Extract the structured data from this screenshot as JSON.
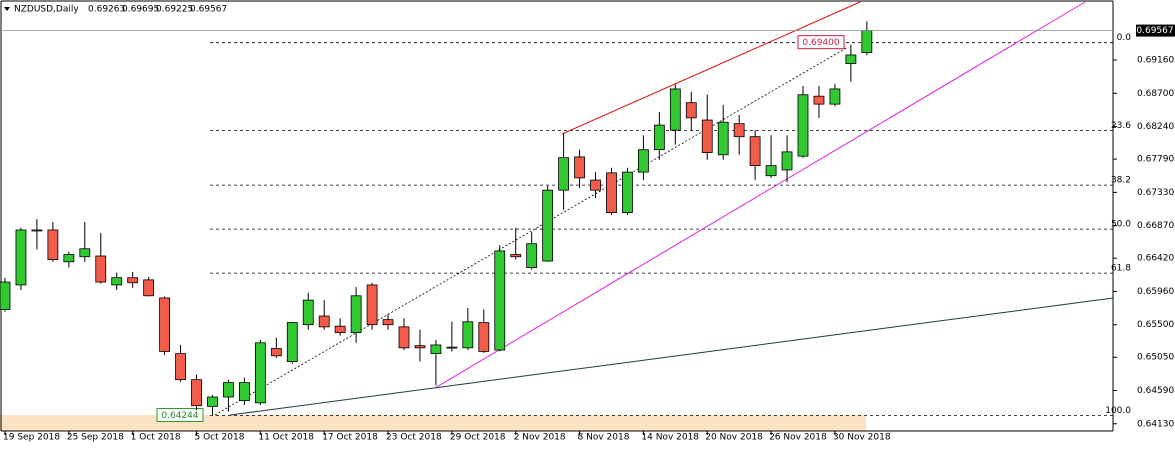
{
  "chart_data": {
    "type": "candlestick",
    "symbol": "NZDUSD,Daily",
    "categories": [
      "19 Sep 2018",
      null,
      null,
      null,
      "25 Sep 2018",
      null,
      null,
      null,
      "1 Oct 2018",
      null,
      null,
      null,
      "5 Oct 2018",
      null,
      null,
      null,
      "11 Oct 2018",
      null,
      null,
      null,
      "17 Oct 2018",
      null,
      null,
      null,
      "23 Oct 2018",
      null,
      null,
      null,
      "29 Oct 2018",
      null,
      null,
      null,
      "2 Nov 2018",
      null,
      null,
      null,
      "8 Nov 2018",
      null,
      null,
      null,
      "14 Nov 2018",
      null,
      null,
      null,
      "20 Nov 2018",
      null,
      null,
      null,
      "26 Nov 2018",
      null,
      null,
      null,
      "30 Nov 2018",
      null,
      null
    ],
    "ohlc": [
      [
        0.6571,
        0.6615,
        0.6568,
        0.6609
      ],
      [
        0.6605,
        0.6684,
        0.6598,
        0.6681
      ],
      [
        0.668,
        0.6696,
        0.6654,
        0.6681
      ],
      [
        0.6681,
        0.6692,
        0.6637,
        0.664
      ],
      [
        0.6637,
        0.6651,
        0.6629,
        0.6647
      ],
      [
        0.6644,
        0.6692,
        0.6637,
        0.6655
      ],
      [
        0.6645,
        0.6677,
        0.6607,
        0.6609
      ],
      [
        0.6605,
        0.6622,
        0.6598,
        0.6615
      ],
      [
        0.6615,
        0.6623,
        0.6601,
        0.6608
      ],
      [
        0.6612,
        0.6616,
        0.6589,
        0.659
      ],
      [
        0.6587,
        0.6589,
        0.6508,
        0.6513
      ],
      [
        0.651,
        0.6522,
        0.6471,
        0.6474
      ],
      [
        0.6474,
        0.6481,
        0.6432,
        0.6438
      ],
      [
        0.6437,
        0.6453,
        0.6424,
        0.645
      ],
      [
        0.645,
        0.6474,
        0.643,
        0.647
      ],
      [
        0.6445,
        0.6477,
        0.6439,
        0.647
      ],
      [
        0.6442,
        0.6529,
        0.6439,
        0.6525
      ],
      [
        0.6517,
        0.6532,
        0.6504,
        0.6507
      ],
      [
        0.6499,
        0.6554,
        0.6496,
        0.6553
      ],
      [
        0.655,
        0.6594,
        0.6543,
        0.6584
      ],
      [
        0.6562,
        0.6584,
        0.6543,
        0.6547
      ],
      [
        0.6548,
        0.6559,
        0.6535,
        0.6539
      ],
      [
        0.6539,
        0.6602,
        0.6525,
        0.659
      ],
      [
        0.6605,
        0.6608,
        0.6543,
        0.655
      ],
      [
        0.6557,
        0.6565,
        0.6543,
        0.655
      ],
      [
        0.6547,
        0.6559,
        0.6515,
        0.6518
      ],
      [
        0.6521,
        0.6543,
        0.6499,
        0.6518
      ],
      [
        0.651,
        0.6529,
        0.6466,
        0.6522
      ],
      [
        0.6519,
        0.6554,
        0.6513,
        0.6518
      ],
      [
        0.6518,
        0.6573,
        0.6515,
        0.6554
      ],
      [
        0.6553,
        0.6571,
        0.6511,
        0.6513
      ],
      [
        0.6515,
        0.666,
        0.6513,
        0.6652
      ],
      [
        0.6647,
        0.6684,
        0.664,
        0.6644
      ],
      [
        0.6629,
        0.6678,
        0.6626,
        0.6662
      ],
      [
        0.6638,
        0.6742,
        0.6637,
        0.6736
      ],
      [
        0.6736,
        0.6815,
        0.6709,
        0.6781
      ],
      [
        0.6782,
        0.6792,
        0.6739,
        0.6753
      ],
      [
        0.675,
        0.6761,
        0.6725,
        0.6736
      ],
      [
        0.676,
        0.6767,
        0.6702,
        0.6705
      ],
      [
        0.6705,
        0.6767,
        0.6702,
        0.6761
      ],
      [
        0.6761,
        0.6812,
        0.675,
        0.6792
      ],
      [
        0.6792,
        0.6844,
        0.6778,
        0.6826
      ],
      [
        0.6819,
        0.6882,
        0.6799,
        0.6876
      ],
      [
        0.6857,
        0.6872,
        0.6819,
        0.6836
      ],
      [
        0.6833,
        0.6868,
        0.6778,
        0.6788
      ],
      [
        0.6785,
        0.6854,
        0.6778,
        0.683
      ],
      [
        0.6828,
        0.684,
        0.6785,
        0.681
      ],
      [
        0.681,
        0.6819,
        0.675,
        0.677
      ],
      [
        0.6756,
        0.6812,
        0.6753,
        0.677
      ],
      [
        0.6764,
        0.6812,
        0.6747,
        0.6789
      ],
      [
        0.6783,
        0.688,
        0.6781,
        0.6868
      ],
      [
        0.6866,
        0.688,
        0.6836,
        0.6855
      ],
      [
        0.6855,
        0.6883,
        0.6852,
        0.6876
      ],
      [
        0.6911,
        0.6937,
        0.6886,
        0.6923
      ],
      [
        0.69263,
        0.69695,
        0.69225,
        0.69567
      ]
    ],
    "up_color": "#32c832",
    "down_color": "#f25a4a",
    "ylim": [
      0.6403,
      0.6999
    ],
    "yticks": [
      {
        "value": 0.6916,
        "label": "0.69160"
      },
      {
        "value": 0.687,
        "label": "0.68700"
      },
      {
        "value": 0.6824,
        "label": "0.68240"
      },
      {
        "value": 0.6779,
        "label": "0.67790"
      },
      {
        "value": 0.6733,
        "label": "0.67330"
      },
      {
        "value": 0.6687,
        "label": "0.66870"
      },
      {
        "value": 0.6642,
        "label": "0.66420"
      },
      {
        "value": 0.6596,
        "label": "0.65960"
      },
      {
        "value": 0.655,
        "label": "0.65500"
      },
      {
        "value": 0.6505,
        "label": "0.65050"
      },
      {
        "value": 0.6459,
        "label": "0.64590"
      },
      {
        "value": 0.6413,
        "label": "0.64130"
      }
    ],
    "fib_high": {
      "value": 0.694,
      "label": "0.69400"
    },
    "fib_low": 0.64244,
    "fib_levels": [
      {
        "value": 0,
        "label": "0.0"
      },
      23.6,
      38.2,
      {
        "value": 50,
        "label": "50.0"
      },
      61.8,
      {
        "value": 100,
        "label": "100.0"
      }
    ]
  }
}
